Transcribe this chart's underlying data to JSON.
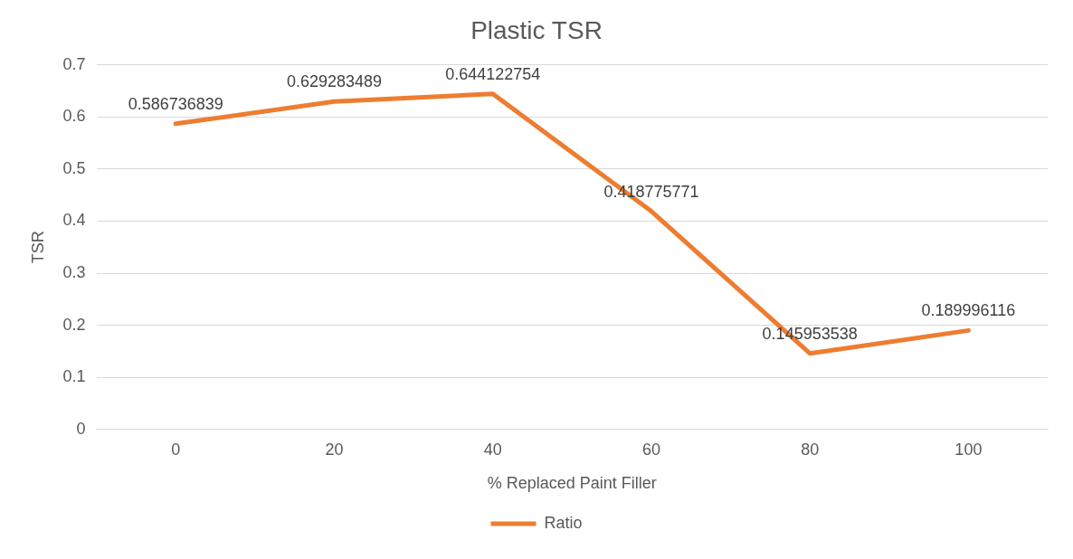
{
  "chart_data": {
    "type": "line",
    "title": "Plastic TSR",
    "xlabel": "% Replaced Paint Filler",
    "ylabel": "TSR",
    "categories": [
      "0",
      "20",
      "40",
      "60",
      "80",
      "100"
    ],
    "series": [
      {
        "name": "Ratio",
        "color": "#ed7d31",
        "values": [
          0.586736839,
          0.629283489,
          0.644122754,
          0.418775771,
          0.145953538,
          0.189996116
        ]
      }
    ],
    "ylim": [
      0,
      0.7
    ],
    "yticks": [
      0,
      0.1,
      0.2,
      0.3,
      0.4,
      0.5,
      0.6,
      0.7
    ],
    "grid": "y",
    "legend": "bottom",
    "data_labels": true,
    "marker": "none",
    "line_style": "solid"
  }
}
